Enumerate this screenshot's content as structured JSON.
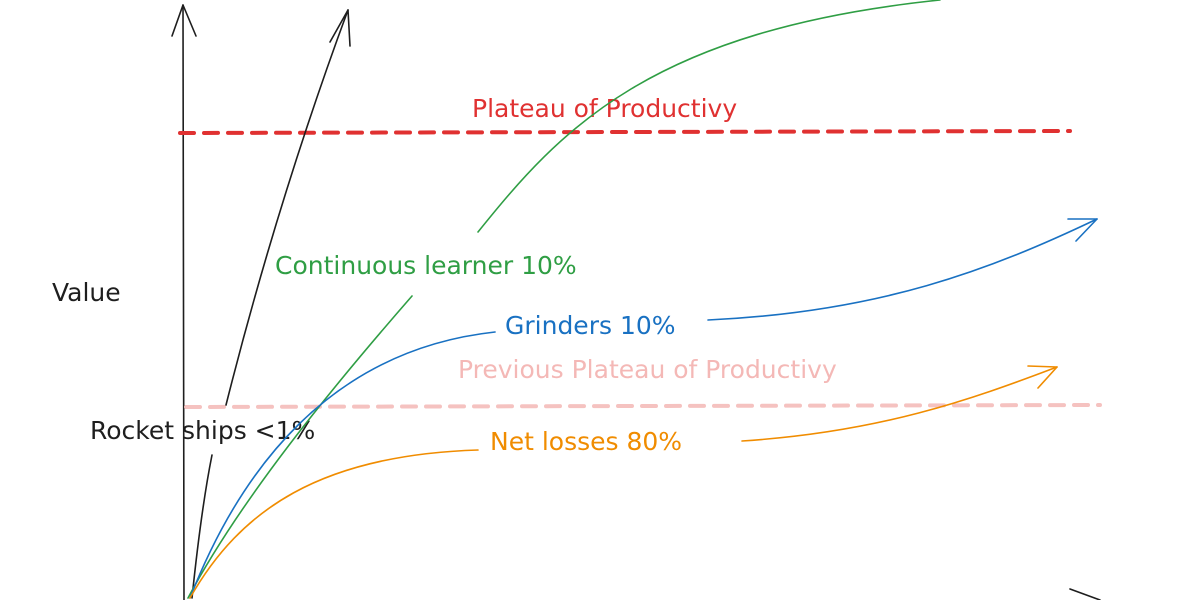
{
  "axis": {
    "label": "Value"
  },
  "plateaus": {
    "current": "Plateau of Productivy",
    "previous": "Previous Plateau of Productivy"
  },
  "curves": [
    {
      "label": "Rocket ships <1%"
    },
    {
      "label": "Continuous learner 10%"
    },
    {
      "label": "Grinders 10%"
    },
    {
      "label": "Net losses 80%"
    }
  ]
}
